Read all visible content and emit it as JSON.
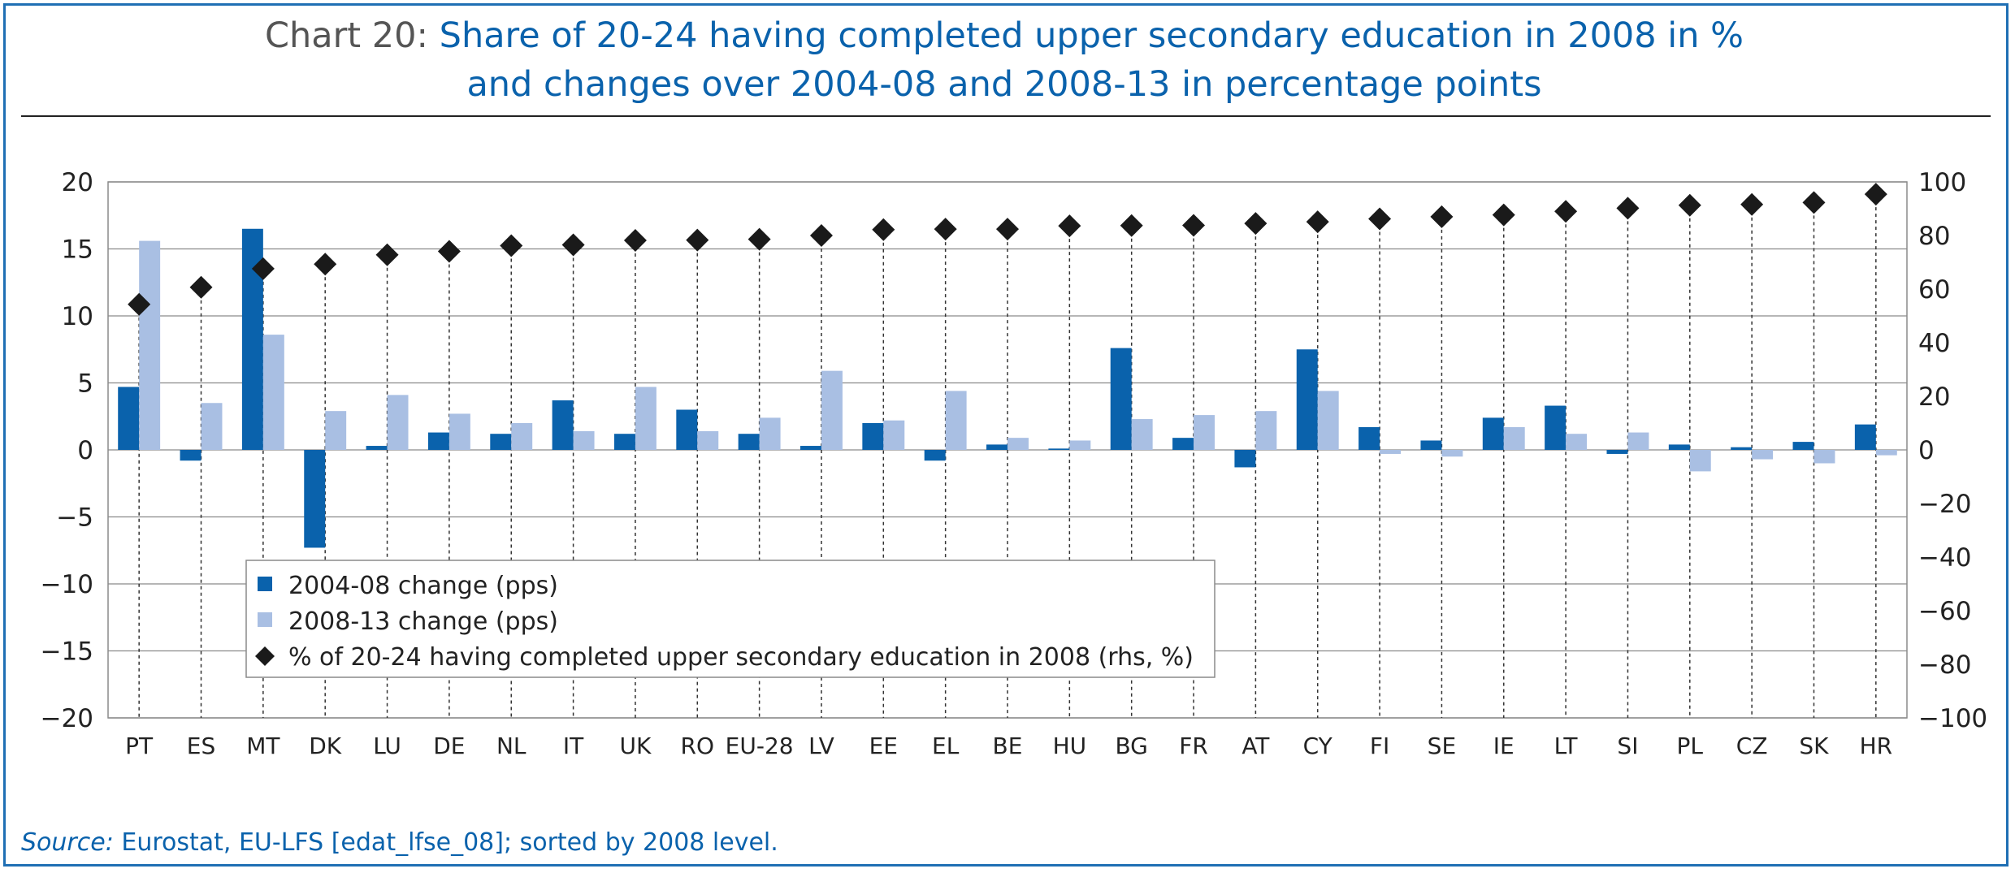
{
  "title": {
    "prefix": "Chart 20:",
    "line1": "Share of 20-24 having completed upper secondary education in 2008 in %",
    "line2": "and changes over 2004-08 and 2008-13 in percentage points"
  },
  "source": {
    "label": "Source:",
    "text": "Eurostat, EU-LFS [edat_lfse_08]; sorted by 2008 level."
  },
  "colors": {
    "series_2004_08": "#0a62ac",
    "series_2008_13": "#a9bfe3",
    "marker": "#1a1a1a",
    "title_accent": "#0a62ac"
  },
  "chart_data": {
    "type": "bar",
    "categories": [
      "PT",
      "ES",
      "MT",
      "DK",
      "LU",
      "DE",
      "NL",
      "IT",
      "UK",
      "RO",
      "EU-28",
      "LV",
      "EE",
      "EL",
      "BE",
      "HU",
      "BG",
      "FR",
      "AT",
      "CY",
      "FI",
      "SE",
      "IE",
      "LT",
      "SI",
      "PL",
      "CZ",
      "SK",
      "HR"
    ],
    "series": [
      {
        "name": "2004-08 change (pps)",
        "axis": "left",
        "kind": "bar",
        "values": [
          4.7,
          -0.8,
          16.5,
          -7.3,
          0.3,
          1.3,
          1.2,
          3.7,
          1.2,
          3.0,
          1.2,
          0.3,
          2.0,
          -0.8,
          0.4,
          0.1,
          7.6,
          0.9,
          -1.3,
          7.5,
          1.7,
          0.7,
          2.4,
          3.3,
          -0.3,
          0.4,
          0.2,
          0.6,
          1.9
        ]
      },
      {
        "name": "2008-13 change (pps)",
        "axis": "left",
        "kind": "bar",
        "values": [
          15.6,
          3.5,
          8.6,
          2.9,
          4.1,
          2.7,
          2.0,
          1.4,
          4.7,
          1.4,
          2.4,
          5.9,
          2.2,
          4.4,
          0.9,
          0.7,
          2.3,
          2.6,
          2.9,
          4.4,
          -0.3,
          -0.5,
          1.7,
          1.2,
          1.3,
          -1.6,
          -0.7,
          -1.0,
          -0.4
        ]
      },
      {
        "name": "% of 20-24 having completed upper secondary education in 2008 (rhs, %)",
        "axis": "right",
        "kind": "marker",
        "values": [
          54.3,
          60.7,
          67.6,
          69.3,
          72.8,
          74.1,
          76.2,
          76.5,
          78.2,
          78.3,
          78.6,
          80.0,
          82.2,
          82.4,
          82.4,
          83.6,
          83.7,
          83.8,
          84.5,
          85.1,
          86.2,
          87.0,
          87.7,
          89.0,
          90.2,
          91.3,
          91.6,
          92.3,
          95.4
        ]
      }
    ],
    "y_left": {
      "min": -20,
      "max": 20,
      "ticks": [
        20,
        15,
        10,
        5,
        0,
        -5,
        -10,
        -15,
        -20
      ]
    },
    "y_right": {
      "min": -100,
      "max": 100,
      "ticks": [
        100,
        80,
        60,
        40,
        20,
        0,
        -20,
        -40,
        -60,
        -80,
        -100
      ]
    },
    "grid": "horizontal",
    "legend_position": "lower-left inside"
  }
}
